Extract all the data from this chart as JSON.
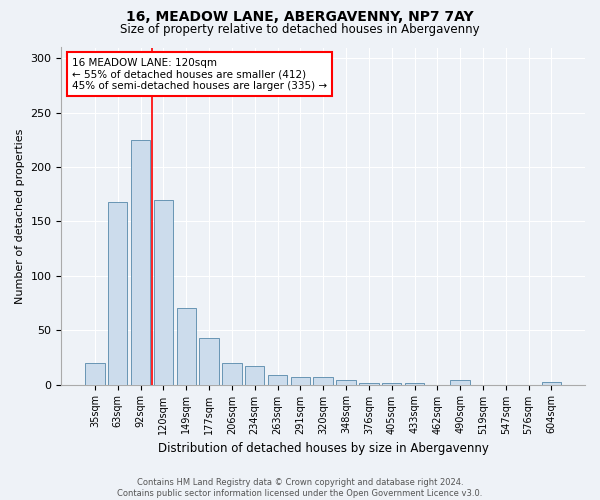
{
  "title1": "16, MEADOW LANE, ABERGAVENNY, NP7 7AY",
  "title2": "Size of property relative to detached houses in Abergavenny",
  "xlabel": "Distribution of detached houses by size in Abergavenny",
  "ylabel": "Number of detached properties",
  "categories": [
    "35sqm",
    "63sqm",
    "92sqm",
    "120sqm",
    "149sqm",
    "177sqm",
    "206sqm",
    "234sqm",
    "263sqm",
    "291sqm",
    "320sqm",
    "348sqm",
    "376sqm",
    "405sqm",
    "433sqm",
    "462sqm",
    "490sqm",
    "519sqm",
    "547sqm",
    "576sqm",
    "604sqm"
  ],
  "values": [
    20,
    168,
    225,
    170,
    70,
    43,
    20,
    17,
    9,
    7,
    7,
    4,
    1,
    1,
    1,
    0,
    4,
    0,
    0,
    0,
    2
  ],
  "bar_color": "#ccdcec",
  "bar_edge_color": "#5588aa",
  "vline_color": "red",
  "vline_x_index": 3,
  "annotation_text": "16 MEADOW LANE: 120sqm\n← 55% of detached houses are smaller (412)\n45% of semi-detached houses are larger (335) →",
  "annotation_box_color": "white",
  "annotation_box_edge": "red",
  "ylim": [
    0,
    310
  ],
  "yticks": [
    0,
    50,
    100,
    150,
    200,
    250,
    300
  ],
  "footer1": "Contains HM Land Registry data © Crown copyright and database right 2024.",
  "footer2": "Contains public sector information licensed under the Open Government Licence v3.0.",
  "bg_color": "#eef2f7",
  "plot_bg_color": "#eef2f7",
  "title1_fontsize": 10,
  "title2_fontsize": 8.5,
  "ylabel_fontsize": 8,
  "xlabel_fontsize": 8.5,
  "tick_fontsize": 7,
  "annotation_fontsize": 7.5,
  "footer_fontsize": 6
}
